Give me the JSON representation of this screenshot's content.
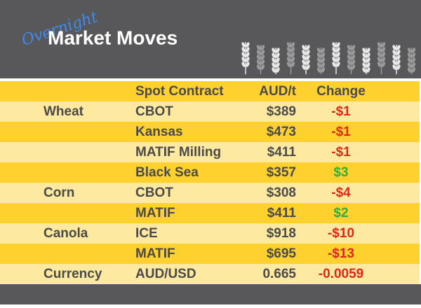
{
  "header": {
    "script_title": "Overnight",
    "title": "Market Moves"
  },
  "table": {
    "columns": [
      "Spot Contract",
      "AUD/t",
      "Change"
    ],
    "rows": [
      [
        "Wheat",
        "CBOT",
        "$389",
        "-$1"
      ],
      [
        null,
        "Kansas",
        "$473",
        "-$1"
      ],
      [
        null,
        "MATIF Milling",
        "$411",
        "-$1"
      ],
      [
        null,
        "Black Sea",
        "$357",
        "$3"
      ],
      [
        "Corn",
        "CBOT",
        "$308",
        "-$4"
      ],
      [
        null,
        "MATIF",
        "$411",
        "$2"
      ],
      [
        "Canola",
        "ICE",
        "$918",
        "-$10"
      ],
      [
        null,
        "MATIF",
        "$695",
        "-$13"
      ],
      [
        "Currency",
        "AUD/USD",
        "0.665",
        "-0.0059"
      ]
    ]
  }
}
